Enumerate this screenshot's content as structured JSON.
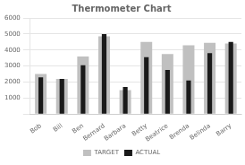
{
  "chart_data": {
    "type": "bar",
    "title": "Thermometer Chart",
    "categories": [
      "Bob",
      "Bill",
      "Ben",
      "Bernard",
      "Barbara",
      "Betty",
      "Beatrice",
      "Brenda",
      "Belinda",
      "Barry"
    ],
    "series": [
      {
        "name": "TARGET",
        "color": "#c0c0c0",
        "values": [
          2500,
          2200,
          3600,
          4850,
          1500,
          4500,
          3750,
          4300,
          4450,
          4400
        ]
      },
      {
        "name": "ACTUAL",
        "color": "#1a1a1a",
        "values": [
          2300,
          2200,
          3050,
          5000,
          1700,
          3550,
          2750,
          2100,
          3800,
          4500
        ]
      }
    ],
    "ylim": [
      0,
      6000
    ],
    "yticks": [
      {
        "value": 0,
        "label": ""
      },
      1000,
      2000,
      3000,
      4000,
      5000,
      6000
    ],
    "grid": true,
    "legend": "bottom"
  }
}
